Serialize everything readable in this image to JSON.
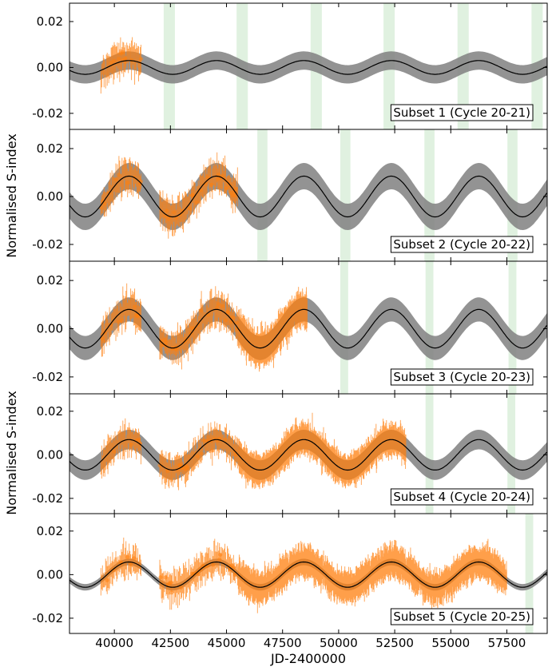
{
  "chart_data": {
    "type": "line",
    "xlabel": "JD-2400000",
    "ylabel": "Normalised S-index",
    "xlim": [
      38000,
      59300
    ],
    "ylim": [
      -0.027,
      0.028
    ],
    "x_ticks": [
      40000,
      42500,
      45000,
      47500,
      50000,
      52500,
      55000,
      57500
    ],
    "x_tick_labels": [
      "40000",
      "42500",
      "45000",
      "47500",
      "50000",
      "52500",
      "55000",
      "57500"
    ],
    "y_ticks": [
      0.02,
      0.0,
      -0.02
    ],
    "y_tick_labels": [
      "0.02",
      "0.00",
      "-0.02"
    ],
    "cycle_model": {
      "period_days": 3900,
      "peak_epoch_jd": 40650,
      "description_series": "model"
    },
    "panels": [
      {
        "label": "Subset 1 (Cycle 20-21)",
        "model_amplitude": 0.003,
        "band_halfwidth": 0.004,
        "data_end_jd": 41300,
        "green_band_centers_jd": [
          42450,
          45700,
          49000,
          52250,
          55550,
          58850
        ],
        "green_band_width_days": 500
      },
      {
        "label": "Subset 2 (Cycle 20-22)",
        "model_amplitude": 0.0085,
        "band_halfwidth": 0.0055,
        "data_end_jd": 45500,
        "green_band_centers_jd": [
          46600,
          50300,
          54050,
          57750
        ],
        "green_band_width_days": 450
      },
      {
        "label": "Subset 3 (Cycle 20-23)",
        "model_amplitude": 0.008,
        "band_halfwidth": 0.005,
        "data_end_jd": 48600,
        "green_band_centers_jd": [
          50250,
          54050,
          57750
        ],
        "green_band_width_days": 350
      },
      {
        "label": "Subset 4 (Cycle 20-24)",
        "model_amplitude": 0.007,
        "band_halfwidth": 0.0045,
        "data_end_jd": 53000,
        "green_band_centers_jd": [
          54050,
          57700
        ],
        "green_band_width_days": 350
      },
      {
        "label": "Subset 5 (Cycle 20-25)",
        "model_amplitude": 0.0058,
        "band_halfwidth": 0.0015,
        "data_end_jd": 57500,
        "green_band_centers_jd": [
          58500
        ],
        "green_band_width_days": 350
      }
    ],
    "colors": {
      "data": "#ff7f0e",
      "model_line": "#000000",
      "model_band": "#808080",
      "green_band": "#2ca02c"
    }
  }
}
